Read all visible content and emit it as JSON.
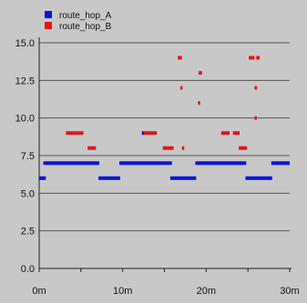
{
  "colors": {
    "route_hop_A": "#0a14d8",
    "route_hop_B": "#e51515"
  },
  "chart_data": {
    "type": "scatter",
    "title": "",
    "xlabel": "",
    "ylabel": "",
    "xlim": [
      0,
      30
    ],
    "ylim": [
      0,
      15
    ],
    "grid": true,
    "legend_position": "top-left",
    "x_ticks": [
      {
        "value": 0,
        "label": "0m"
      },
      {
        "value": 10,
        "label": "10m"
      },
      {
        "value": 20,
        "label": "20m"
      },
      {
        "value": 30,
        "label": "30m"
      }
    ],
    "y_ticks": [
      {
        "value": 0,
        "label": "0.0"
      },
      {
        "value": 2.5,
        "label": "2.5"
      },
      {
        "value": 5,
        "label": "5.0"
      },
      {
        "value": 7.5,
        "label": "7.5"
      },
      {
        "value": 10,
        "label": "10.0"
      },
      {
        "value": 12.5,
        "label": "12.5"
      },
      {
        "value": 15,
        "label": "15.0"
      }
    ],
    "series": [
      {
        "name": "route_hop_A",
        "color": "#0a14d8",
        "segments": [
          {
            "y": 6,
            "x": [
              0,
              0.8
            ]
          },
          {
            "y": 7,
            "x": [
              0.5,
              7.2
            ]
          },
          {
            "y": 6,
            "x": [
              7.1,
              9.7
            ]
          },
          {
            "y": 7,
            "x": [
              9.6,
              12.6
            ]
          },
          {
            "y": 9,
            "x": [
              12.3,
              12.6
            ]
          },
          {
            "y": 7,
            "x": [
              12.6,
              15.9
            ]
          },
          {
            "y": 6,
            "x": [
              15.7,
              18.8
            ]
          },
          {
            "y": 7,
            "x": [
              18.7,
              24.8
            ]
          },
          {
            "y": 6,
            "x": [
              24.7,
              27.9
            ]
          },
          {
            "y": 7,
            "x": [
              27.8,
              30
            ]
          }
        ]
      },
      {
        "name": "route_hop_B",
        "color": "#e51515",
        "segments": [
          {
            "y": 9,
            "x": [
              3.2,
              5.3
            ]
          },
          {
            "y": 8,
            "x": [
              5.8,
              6.8
            ]
          },
          {
            "y": 9,
            "x": [
              12.5,
              14.1
            ]
          },
          {
            "y": 8,
            "x": [
              14.8,
              16.1
            ]
          },
          {
            "y": 14,
            "x": [
              16.6,
              17.1
            ]
          },
          {
            "y": 12,
            "x": [
              16.9,
              17.1
            ]
          },
          {
            "y": 8,
            "x": [
              17.1,
              17.3
            ]
          },
          {
            "y": 13,
            "x": [
              19.1,
              19.5
            ]
          },
          {
            "y": 11,
            "x": [
              19.0,
              19.2
            ]
          },
          {
            "y": 9,
            "x": [
              21.8,
              22.8
            ]
          },
          {
            "y": 9,
            "x": [
              23.2,
              24.0
            ]
          },
          {
            "y": 8,
            "x": [
              23.9,
              24.9
            ]
          },
          {
            "y": 14,
            "x": [
              25.1,
              25.8
            ]
          },
          {
            "y": 14,
            "x": [
              26.0,
              26.4
            ]
          },
          {
            "y": 12,
            "x": [
              25.8,
              26.1
            ]
          },
          {
            "y": 10,
            "x": [
              25.8,
              26.0
            ]
          }
        ]
      }
    ]
  }
}
